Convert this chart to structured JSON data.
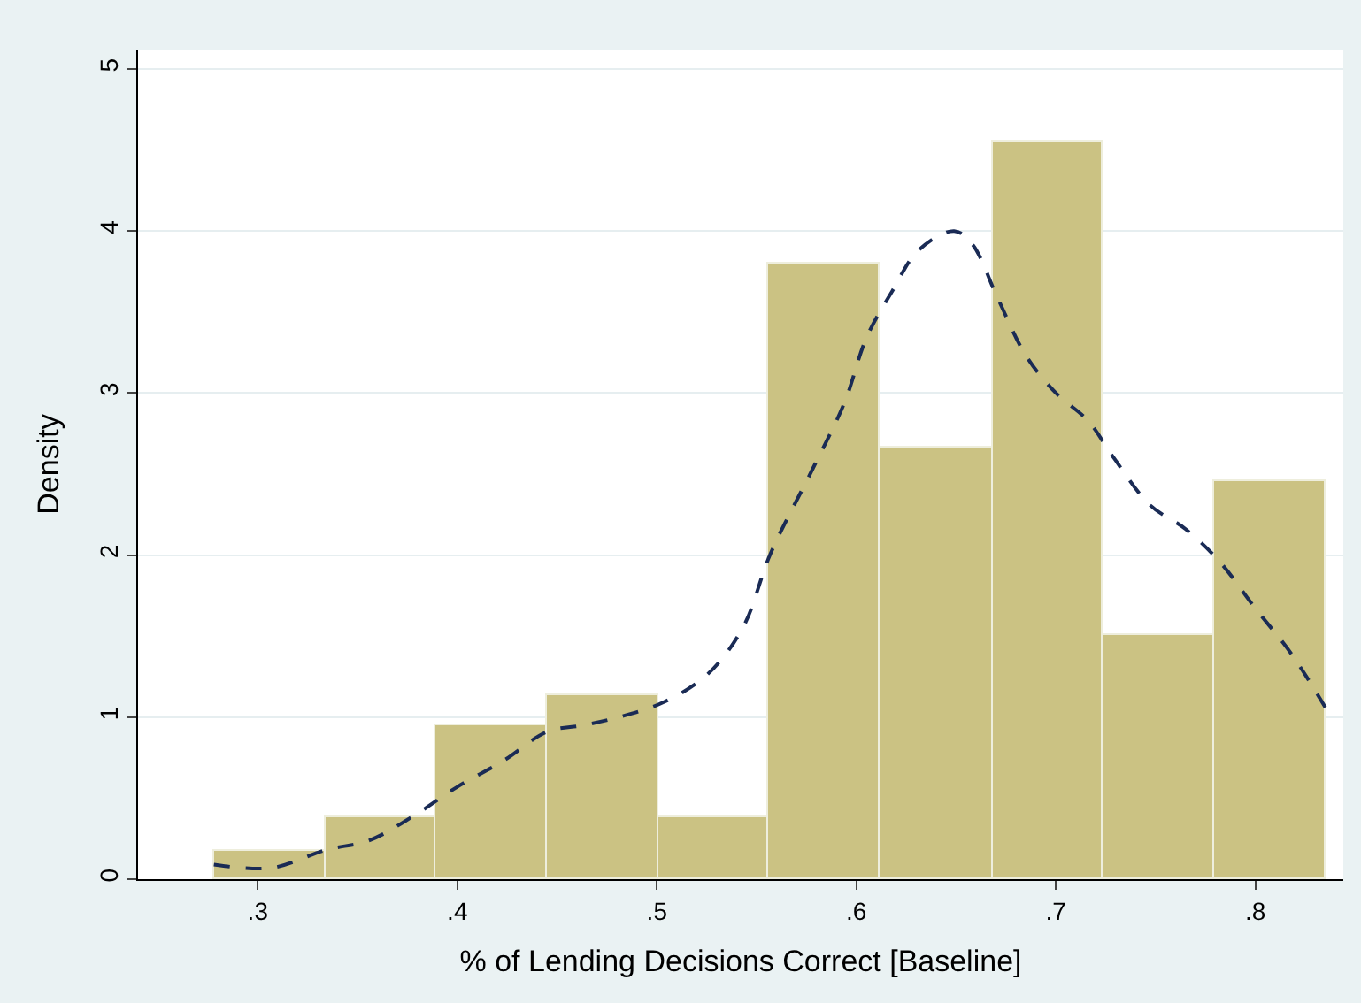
{
  "chart_data": {
    "type": "histogram",
    "xlabel": "% of Lending Decisions Correct [Baseline]",
    "ylabel": "Density",
    "bins": [
      0.278,
      0.334,
      0.389,
      0.445,
      0.501,
      0.556,
      0.612,
      0.668,
      0.723,
      0.779,
      0.835
    ],
    "values": [
      0.18,
      0.38,
      0.95,
      1.13,
      0.38,
      3.8,
      2.66,
      4.55,
      1.51,
      2.46
    ],
    "color": "#cbc283",
    "series": [
      {
        "type": "line",
        "color": "#1a2b55",
        "line_style": "dashed",
        "x": [
          0.278,
          0.307,
          0.334,
          0.356,
          0.378,
          0.4,
          0.423,
          0.445,
          0.463,
          0.481,
          0.503,
          0.525,
          0.543,
          0.557,
          0.578,
          0.594,
          0.605,
          0.618,
          0.631,
          0.649,
          0.658,
          0.671,
          0.685,
          0.7,
          0.716,
          0.729,
          0.747,
          0.765,
          0.782,
          0.8,
          0.818,
          0.835
        ],
        "values": [
          0.09,
          0.07,
          0.18,
          0.24,
          0.39,
          0.57,
          0.73,
          0.91,
          0.95,
          1.0,
          1.09,
          1.26,
          1.55,
          2.01,
          2.53,
          2.94,
          3.34,
          3.63,
          3.88,
          4.0,
          3.92,
          3.58,
          3.23,
          3.0,
          2.83,
          2.6,
          2.31,
          2.16,
          1.96,
          1.67,
          1.39,
          1.06
        ]
      }
    ],
    "xlim": [
      0.24,
      0.844
    ],
    "xticks": [
      {
        "value": 0.3,
        "label": ".3"
      },
      {
        "value": 0.4,
        "label": ".4"
      },
      {
        "value": 0.5,
        "label": ".5"
      },
      {
        "value": 0.6,
        "label": ".6"
      },
      {
        "value": 0.7,
        "label": ".7"
      },
      {
        "value": 0.8,
        "label": ".8"
      }
    ],
    "ylim": [
      0,
      5.12
    ],
    "yticks": [
      0,
      1,
      2,
      3,
      4,
      5
    ],
    "grid": "y"
  }
}
